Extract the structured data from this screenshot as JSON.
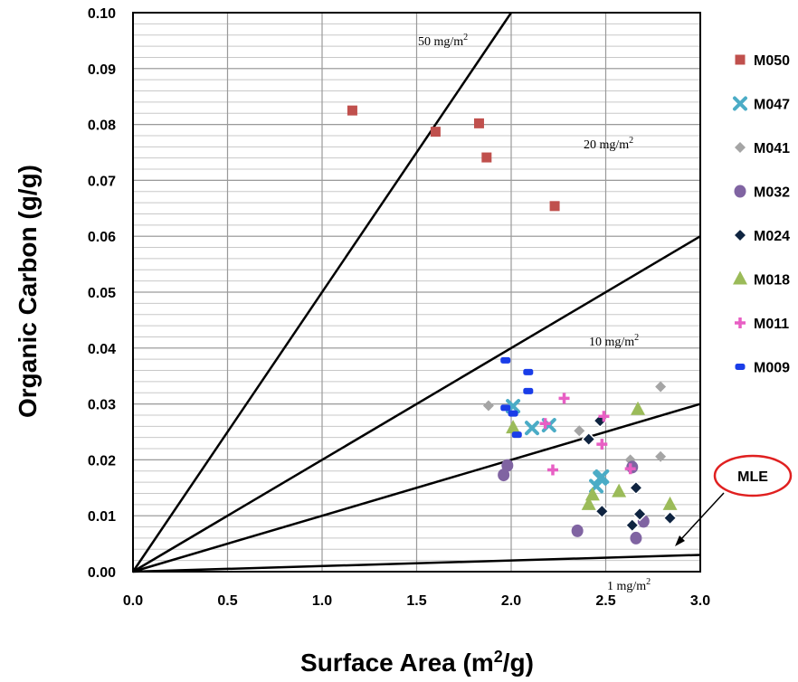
{
  "chart_data": {
    "type": "scatter",
    "xlabel": "Surface Area (m²/g)",
    "ylabel": "Organic Carbon (g/g)",
    "xlim": [
      0,
      3.0
    ],
    "ylim": [
      0,
      0.1
    ],
    "x_ticks": [
      "0.0",
      "0.5",
      "1.0",
      "1.5",
      "2.0",
      "2.5",
      "3.0"
    ],
    "y_ticks": [
      "0.00",
      "0.01",
      "0.02",
      "0.03",
      "0.04",
      "0.05",
      "0.06",
      "0.07",
      "0.08",
      "0.09",
      "0.10"
    ],
    "grid": true,
    "legend_position": "right",
    "reference_lines": [
      {
        "label": "50 mg/m²",
        "slope": 0.05
      },
      {
        "label": "20 mg/m²",
        "slope": 0.02
      },
      {
        "label": "10 mg/m²",
        "slope": 0.01
      },
      {
        "label": "1 mg/m²",
        "slope": 0.001
      }
    ],
    "series": [
      {
        "name": "M050",
        "marker": "square",
        "color": "#c0504d",
        "points": [
          [
            1.16,
            0.0825
          ],
          [
            1.6,
            0.0787
          ],
          [
            1.83,
            0.0802
          ],
          [
            1.87,
            0.0741
          ],
          [
            2.23,
            0.0654
          ]
        ]
      },
      {
        "name": "M047",
        "marker": "x",
        "color": "#4bacc6",
        "points": [
          [
            2.01,
            0.0296
          ],
          [
            2.11,
            0.0257
          ],
          [
            2.2,
            0.0262
          ],
          [
            2.45,
            0.0153
          ],
          [
            2.47,
            0.0167
          ],
          [
            2.48,
            0.017
          ]
        ]
      },
      {
        "name": "M041",
        "marker": "diamond",
        "color": "#a5a5a5",
        "points": [
          [
            1.88,
            0.0297
          ],
          [
            2.36,
            0.0252
          ],
          [
            2.63,
            0.02
          ],
          [
            2.79,
            0.0331
          ],
          [
            2.79,
            0.0206
          ]
        ]
      },
      {
        "name": "M032",
        "marker": "circle",
        "color": "#8064a2",
        "points": [
          [
            1.96,
            0.0173
          ],
          [
            1.98,
            0.019
          ],
          [
            2.35,
            0.0073
          ],
          [
            2.64,
            0.0187
          ],
          [
            2.66,
            0.006
          ],
          [
            2.7,
            0.009
          ]
        ]
      },
      {
        "name": "M024",
        "marker": "diamond-outlined",
        "color": "#0f2440",
        "points": [
          [
            2.41,
            0.0237
          ],
          [
            2.47,
            0.027
          ],
          [
            2.48,
            0.0108
          ],
          [
            2.64,
            0.0083
          ],
          [
            2.66,
            0.015
          ],
          [
            2.68,
            0.0103
          ],
          [
            2.84,
            0.0096
          ]
        ]
      },
      {
        "name": "M018",
        "marker": "triangle",
        "color": "#9bbb59",
        "points": [
          [
            2.01,
            0.0257
          ],
          [
            2.41,
            0.012
          ],
          [
            2.43,
            0.0137
          ],
          [
            2.57,
            0.0143
          ],
          [
            2.67,
            0.029
          ],
          [
            2.84,
            0.012
          ]
        ]
      },
      {
        "name": "M011",
        "marker": "plus",
        "color": "#e85fc4",
        "points": [
          [
            2.18,
            0.0265
          ],
          [
            2.22,
            0.0182
          ],
          [
            2.28,
            0.031
          ],
          [
            2.48,
            0.0228
          ],
          [
            2.49,
            0.0278
          ],
          [
            2.63,
            0.0184
          ]
        ]
      },
      {
        "name": "M009",
        "marker": "dash",
        "color": "#1a3de8",
        "points": [
          [
            1.97,
            0.0378
          ],
          [
            1.97,
            0.0293
          ],
          [
            2.01,
            0.0283
          ],
          [
            2.03,
            0.0245
          ],
          [
            2.09,
            0.0357
          ],
          [
            2.09,
            0.0323
          ]
        ]
      }
    ],
    "callout": {
      "label": "MLE"
    }
  }
}
